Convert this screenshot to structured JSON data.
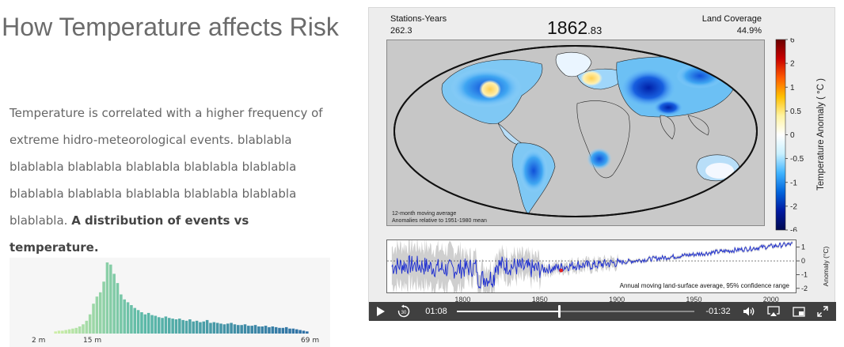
{
  "page": {
    "title": "How Temperature affects Risk",
    "description_text": "Temperature is correlated with a higher frequency of extreme hidro-meteorological events. blablabla blablabla blablabla blablabla blablabla blablabla blablabla blablabla blablabla blablabla blablabla blablabla. ",
    "description_emphasis": "A distribution of events vs temperature."
  },
  "histogram": {
    "axis_labels": [
      "2 m",
      "15 m",
      "69 m"
    ],
    "values": [
      3,
      4,
      4,
      5,
      6,
      7,
      8,
      10,
      13,
      18,
      27,
      42,
      52,
      58,
      73,
      100,
      97,
      84,
      71,
      55,
      48,
      44,
      40,
      36,
      33,
      30,
      27,
      29,
      26,
      25,
      23,
      22,
      24,
      22,
      21,
      20,
      21,
      19,
      18,
      20,
      17,
      18,
      16,
      17,
      19,
      15,
      16,
      15,
      14,
      13,
      14,
      15,
      13,
      12,
      12,
      13,
      11,
      11,
      12,
      10,
      10,
      11,
      9,
      10,
      9,
      8,
      8,
      9,
      7,
      7,
      6,
      5,
      4,
      3
    ],
    "colors": {
      "start": "#cdeea6",
      "mid": "#5bb9a8",
      "end": "#2e6fa5"
    }
  },
  "video": {
    "stations_years_label": "Stations-Years",
    "stations_years_value": "262.3",
    "year_main": "1862",
    "year_fraction": ".83",
    "land_coverage_label": "Land Coverage",
    "land_coverage_value": "44.9%",
    "map_note_line1": "12-month moving average",
    "map_note_line2": "Anomalies relative to 1951-1980 mean",
    "colorbar": {
      "title": "Temperature Anomaly ( °C )",
      "ticks": [
        "6",
        "2",
        "1",
        "0.5",
        "0",
        "-0.5",
        "-1",
        "-2",
        "-6"
      ],
      "colors": [
        "#6b0000",
        "#c80000",
        "#ff5a00",
        "#ffc000",
        "#fff3a0",
        "#ffffff",
        "#c8f0ff",
        "#40b4ff",
        "#0064dc",
        "#0018a0",
        "#000a50"
      ]
    },
    "timeseries": {
      "caption": "Annual moving land-surface average, 95% confidence range",
      "y_axis_label": "Anomaly (°C)",
      "y_ticks": [
        "1",
        "0",
        "-1",
        "-2"
      ],
      "x_ticks": [
        "1800",
        "1850",
        "1900",
        "1950",
        "2000"
      ],
      "x_range": [
        1750,
        2015
      ],
      "y_range": [
        -2.3,
        1.5
      ],
      "current_year": 1862.83,
      "line_color": "#1a2bd0",
      "band_color": "#cfcfcf",
      "marker_color": "#e02020"
    },
    "controls": {
      "elapsed": "01:08",
      "remaining": "-01:32",
      "progress_fraction": 0.43,
      "skip_back_seconds": "30"
    }
  }
}
